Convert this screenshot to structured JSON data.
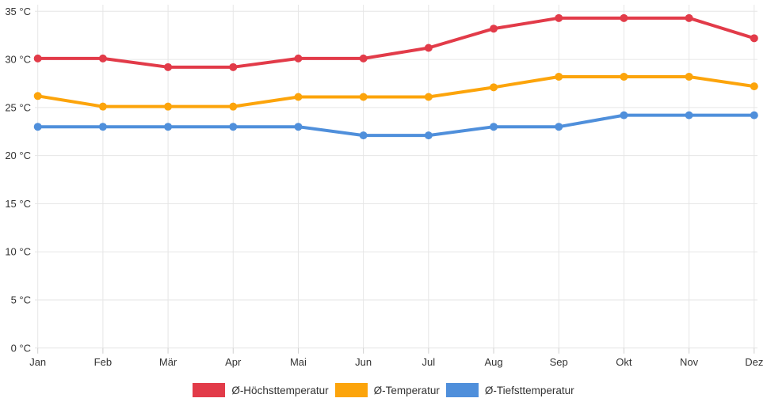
{
  "chart_data": {
    "type": "line",
    "title": "",
    "categories": [
      "Jan",
      "Feb",
      "Mär",
      "Apr",
      "Mai",
      "Jun",
      "Jul",
      "Aug",
      "Sep",
      "Okt",
      "Nov",
      "Dez"
    ],
    "y_axis": {
      "min": 0,
      "max": 35,
      "step": 5,
      "unit": "°C",
      "tick_labels": [
        "0 °C",
        "5 °C",
        "10 °C",
        "15 °C",
        "20 °C",
        "25 °C",
        "30 °C",
        "35 °C"
      ]
    },
    "series": [
      {
        "name": "Ø-Höchsttemperatur",
        "color": "#e23b49",
        "values": [
          30.1,
          30.1,
          29.2,
          29.2,
          30.1,
          30.1,
          31.2,
          33.2,
          34.3,
          34.3,
          34.3,
          32.2
        ]
      },
      {
        "name": "Ø-Temperatur",
        "color": "#fca40b",
        "values": [
          26.2,
          25.1,
          25.1,
          25.1,
          26.1,
          26.1,
          26.1,
          27.1,
          28.2,
          28.2,
          28.2,
          27.2
        ]
      },
      {
        "name": "Ø-Tiefsttemperatur",
        "color": "#4f8fdb",
        "values": [
          23.0,
          23.0,
          23.0,
          23.0,
          23.0,
          22.1,
          22.1,
          23.0,
          23.0,
          24.2,
          24.2,
          24.2
        ]
      }
    ],
    "legend_position": "bottom",
    "grid": true,
    "xlabel": "",
    "ylabel": ""
  },
  "colors": {
    "gridline": "#e6e6e6",
    "tick": "#cfcfcf",
    "axis_text": "#333333",
    "background": "#ffffff"
  }
}
